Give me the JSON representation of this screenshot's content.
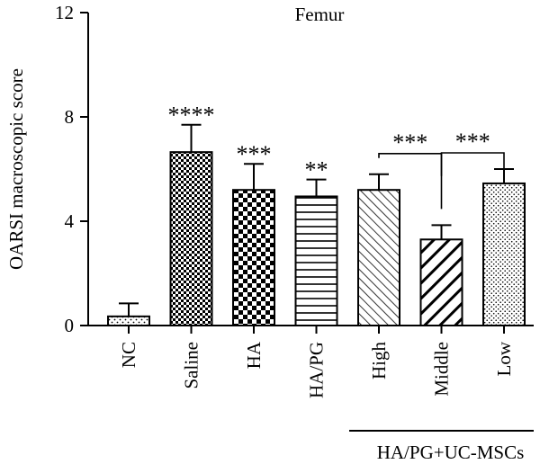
{
  "chart_data": {
    "type": "bar",
    "title": "Femur",
    "ylabel": "OARSI macroscopic score",
    "xlabel": "",
    "ylim": [
      0,
      12
    ],
    "yticks": [
      0,
      4,
      8,
      12
    ],
    "grid": false,
    "categories": [
      "NC",
      "Saline",
      "HA",
      "HA/PG",
      "High",
      "Middle",
      "Low"
    ],
    "values": [
      0.35,
      6.65,
      5.2,
      4.95,
      5.2,
      3.3,
      5.45
    ],
    "errors": [
      0.5,
      1.05,
      1.0,
      0.65,
      0.6,
      0.55,
      0.55
    ],
    "patterns": [
      "dots-sparse",
      "checker-fine",
      "checker-coarse",
      "horizontal-lines",
      "diagonal-fine",
      "diagonal-thick",
      "dots-dense"
    ],
    "significance": [
      "",
      "****",
      "***",
      "**",
      "",
      "",
      ""
    ],
    "comparisons": [
      {
        "from": "High",
        "to": "Middle",
        "label": "***"
      },
      {
        "from": "Middle",
        "to": "Low",
        "label": "***"
      }
    ],
    "group_label": {
      "text": "HA/PG+UC-MSCs",
      "from": "High",
      "to": "Low"
    }
  }
}
